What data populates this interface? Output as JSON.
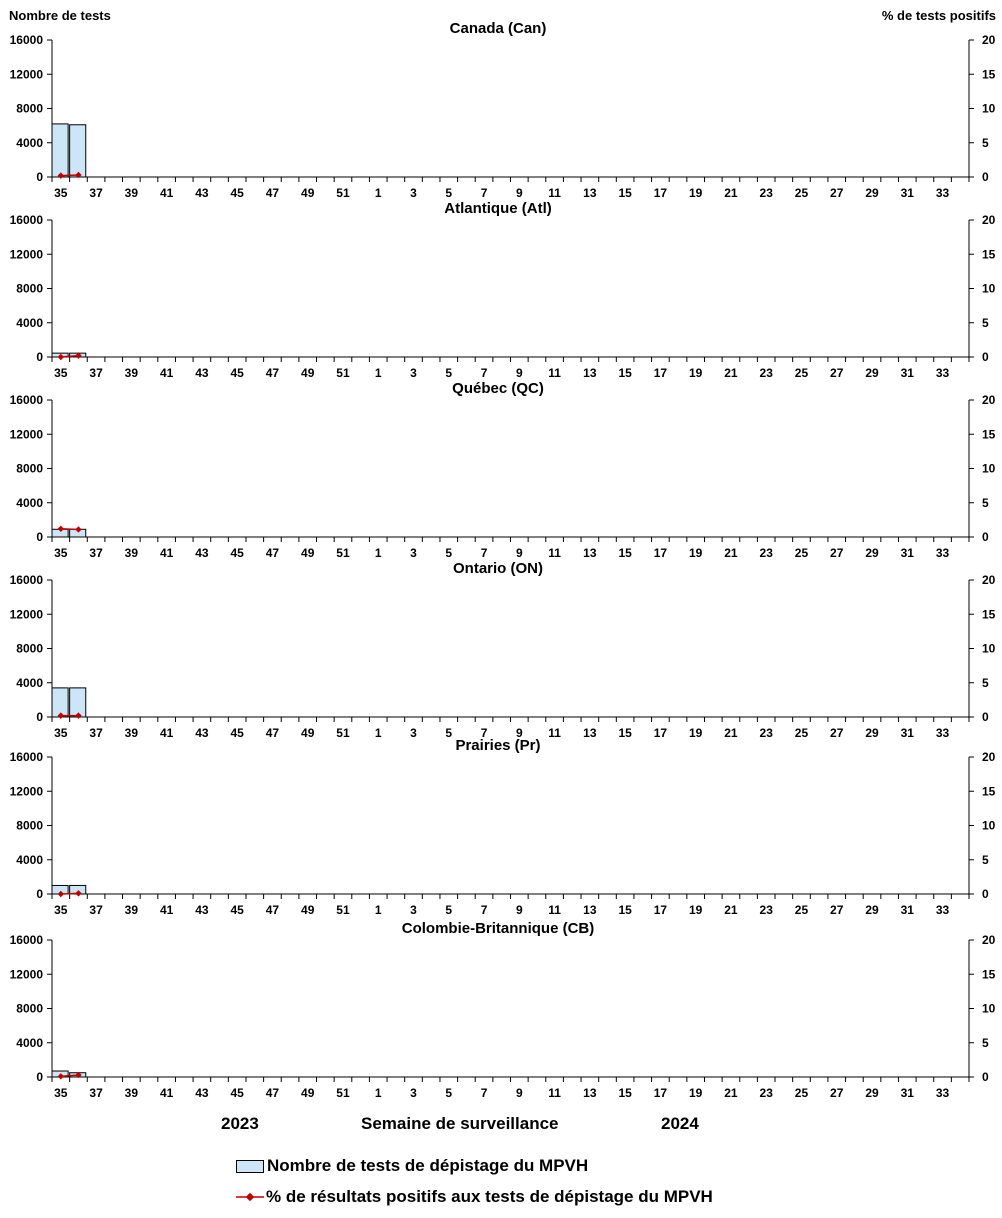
{
  "headers": {
    "left_axis": "Nombre de tests",
    "right_axis": "% de tests positifs"
  },
  "footer": {
    "year_left": "2023",
    "x_label": "Semaine de surveillance",
    "year_right": "2024"
  },
  "legend": {
    "bar_label": "Nombre de tests de dépistage du MPVH",
    "line_label": "% de résultats positifs aux tests de dépistage du MPVH"
  },
  "colors": {
    "bar_fill": "#cce6f7",
    "bar_stroke": "#000000",
    "line": "#c00000"
  },
  "chart_data": [
    {
      "type": "bar",
      "title": "Canada (Can)",
      "weeks": [
        35,
        36,
        37,
        38,
        39,
        40,
        41,
        42,
        43,
        44,
        45,
        46,
        47,
        48,
        49,
        50,
        51,
        52,
        1,
        2,
        3,
        4,
        5,
        6,
        7,
        8,
        9,
        10,
        11,
        12,
        13,
        14,
        15,
        16,
        17,
        18,
        19,
        20,
        21,
        22,
        23,
        24,
        25,
        26,
        27,
        28,
        29,
        30,
        31,
        32,
        33,
        34
      ],
      "tick_labels": [
        "35",
        "37",
        "39",
        "41",
        "43",
        "45",
        "47",
        "49",
        "51",
        "1",
        "3",
        "5",
        "7",
        "9",
        "11",
        "13",
        "15",
        "17",
        "19",
        "21",
        "23",
        "25",
        "27",
        "29",
        "31",
        "33"
      ],
      "y_left_ticks": [
        "0",
        "4000",
        "8000",
        "12000",
        "16000"
      ],
      "y_right_ticks": [
        "0",
        "5",
        "10",
        "15",
        "20"
      ],
      "ylim_left": [
        0,
        16000
      ],
      "ylim_right": [
        0,
        20
      ],
      "series": [
        {
          "values": [
            6200,
            6100
          ]
        },
        {
          "values": [
            0.2,
            0.3
          ]
        }
      ]
    },
    {
      "type": "bar",
      "title": "Atlantique (Atl)",
      "weeks": [
        35,
        36,
        37,
        38,
        39,
        40,
        41,
        42,
        43,
        44,
        45,
        46,
        47,
        48,
        49,
        50,
        51,
        52,
        1,
        2,
        3,
        4,
        5,
        6,
        7,
        8,
        9,
        10,
        11,
        12,
        13,
        14,
        15,
        16,
        17,
        18,
        19,
        20,
        21,
        22,
        23,
        24,
        25,
        26,
        27,
        28,
        29,
        30,
        31,
        32,
        33,
        34
      ],
      "tick_labels": [
        "35",
        "37",
        "39",
        "41",
        "43",
        "45",
        "47",
        "49",
        "51",
        "1",
        "3",
        "5",
        "7",
        "9",
        "11",
        "13",
        "15",
        "17",
        "19",
        "21",
        "23",
        "25",
        "27",
        "29",
        "31",
        "33"
      ],
      "y_left_ticks": [
        "0",
        "4000",
        "8000",
        "12000",
        "16000"
      ],
      "y_right_ticks": [
        "0",
        "5",
        "10",
        "15",
        "20"
      ],
      "ylim_left": [
        0,
        16000
      ],
      "ylim_right": [
        0,
        20
      ],
      "series": [
        {
          "values": [
            450,
            450
          ]
        },
        {
          "values": [
            0.0,
            0.2
          ]
        }
      ]
    },
    {
      "type": "bar",
      "title": "Québec (QC)",
      "weeks": [
        35,
        36,
        37,
        38,
        39,
        40,
        41,
        42,
        43,
        44,
        45,
        46,
        47,
        48,
        49,
        50,
        51,
        52,
        1,
        2,
        3,
        4,
        5,
        6,
        7,
        8,
        9,
        10,
        11,
        12,
        13,
        14,
        15,
        16,
        17,
        18,
        19,
        20,
        21,
        22,
        23,
        24,
        25,
        26,
        27,
        28,
        29,
        30,
        31,
        32,
        33,
        34
      ],
      "tick_labels": [
        "35",
        "37",
        "39",
        "41",
        "43",
        "45",
        "47",
        "49",
        "51",
        "1",
        "3",
        "5",
        "7",
        "9",
        "11",
        "13",
        "15",
        "17",
        "19",
        "21",
        "23",
        "25",
        "27",
        "29",
        "31",
        "33"
      ],
      "y_left_ticks": [
        "0",
        "4000",
        "8000",
        "12000",
        "16000"
      ],
      "y_right_ticks": [
        "0",
        "5",
        "10",
        "15",
        "20"
      ],
      "ylim_left": [
        0,
        16000
      ],
      "ylim_right": [
        0,
        20
      ],
      "series": [
        {
          "values": [
            900,
            900
          ]
        },
        {
          "values": [
            1.2,
            1.1
          ]
        }
      ]
    },
    {
      "type": "bar",
      "title": "Ontario (ON)",
      "weeks": [
        35,
        36,
        37,
        38,
        39,
        40,
        41,
        42,
        43,
        44,
        45,
        46,
        47,
        48,
        49,
        50,
        51,
        52,
        1,
        2,
        3,
        4,
        5,
        6,
        7,
        8,
        9,
        10,
        11,
        12,
        13,
        14,
        15,
        16,
        17,
        18,
        19,
        20,
        21,
        22,
        23,
        24,
        25,
        26,
        27,
        28,
        29,
        30,
        31,
        32,
        33,
        34
      ],
      "tick_labels": [
        "35",
        "37",
        "39",
        "41",
        "43",
        "45",
        "47",
        "49",
        "51",
        "1",
        "3",
        "5",
        "7",
        "9",
        "11",
        "13",
        "15",
        "17",
        "19",
        "21",
        "23",
        "25",
        "27",
        "29",
        "31",
        "33"
      ],
      "y_left_ticks": [
        "0",
        "4000",
        "8000",
        "12000",
        "16000"
      ],
      "y_right_ticks": [
        "0",
        "5",
        "10",
        "15",
        "20"
      ],
      "ylim_left": [
        0,
        16000
      ],
      "ylim_right": [
        0,
        20
      ],
      "series": [
        {
          "values": [
            3400,
            3400
          ]
        },
        {
          "values": [
            0.2,
            0.2
          ]
        }
      ]
    },
    {
      "type": "bar",
      "title": "Prairies (Pr)",
      "weeks": [
        35,
        36,
        37,
        38,
        39,
        40,
        41,
        42,
        43,
        44,
        45,
        46,
        47,
        48,
        49,
        50,
        51,
        52,
        1,
        2,
        3,
        4,
        5,
        6,
        7,
        8,
        9,
        10,
        11,
        12,
        13,
        14,
        15,
        16,
        17,
        18,
        19,
        20,
        21,
        22,
        23,
        24,
        25,
        26,
        27,
        28,
        29,
        30,
        31,
        32,
        33,
        34
      ],
      "tick_labels": [
        "35",
        "37",
        "39",
        "41",
        "43",
        "45",
        "47",
        "49",
        "51",
        "1",
        "3",
        "5",
        "7",
        "9",
        "11",
        "13",
        "15",
        "17",
        "19",
        "21",
        "23",
        "25",
        "27",
        "29",
        "31",
        "33"
      ],
      "y_left_ticks": [
        "0",
        "4000",
        "8000",
        "12000",
        "16000"
      ],
      "y_right_ticks": [
        "0",
        "5",
        "10",
        "15",
        "20"
      ],
      "ylim_left": [
        0,
        16000
      ],
      "ylim_right": [
        0,
        20
      ],
      "series": [
        {
          "values": [
            1000,
            1000
          ]
        },
        {
          "values": [
            0.0,
            0.1
          ]
        }
      ]
    },
    {
      "type": "bar",
      "title": "Colombie-Britannique (CB)",
      "weeks": [
        35,
        36,
        37,
        38,
        39,
        40,
        41,
        42,
        43,
        44,
        45,
        46,
        47,
        48,
        49,
        50,
        51,
        52,
        1,
        2,
        3,
        4,
        5,
        6,
        7,
        8,
        9,
        10,
        11,
        12,
        13,
        14,
        15,
        16,
        17,
        18,
        19,
        20,
        21,
        22,
        23,
        24,
        25,
        26,
        27,
        28,
        29,
        30,
        31,
        32,
        33,
        34
      ],
      "tick_labels": [
        "35",
        "37",
        "39",
        "41",
        "43",
        "45",
        "47",
        "49",
        "51",
        "1",
        "3",
        "5",
        "7",
        "9",
        "11",
        "13",
        "15",
        "17",
        "19",
        "21",
        "23",
        "25",
        "27",
        "29",
        "31",
        "33"
      ],
      "y_left_ticks": [
        "0",
        "4000",
        "8000",
        "12000",
        "16000"
      ],
      "y_right_ticks": [
        "0",
        "5",
        "10",
        "15",
        "20"
      ],
      "ylim_left": [
        0,
        16000
      ],
      "ylim_right": [
        0,
        20
      ],
      "series": [
        {
          "values": [
            700,
            500
          ]
        },
        {
          "values": [
            0.1,
            0.3
          ]
        }
      ]
    }
  ]
}
